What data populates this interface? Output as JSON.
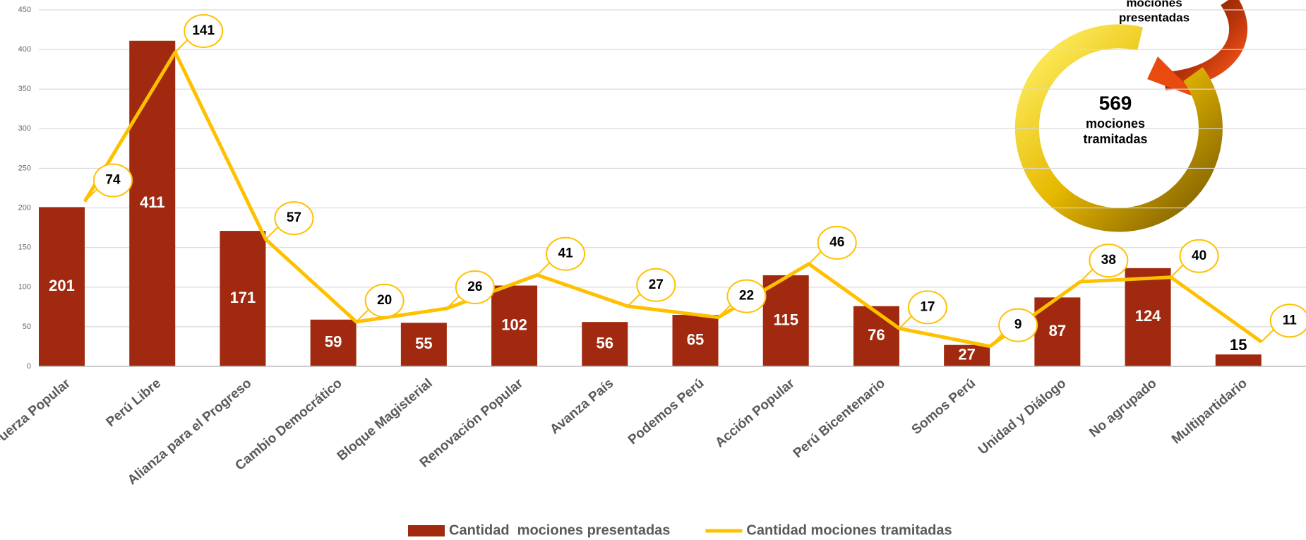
{
  "chart_data": {
    "type": "bar_line",
    "categories": [
      "Fuerza Popular",
      "Perú Libre",
      "Alianza para el Progreso",
      "Cambio Democrático",
      "Bloque Magisterial",
      "Renovación Popular",
      "Avanza País",
      "Podemos Perú",
      "Acción Popular",
      "Perú Bicentenario",
      "Somos Perú",
      "Unidad y Diálogo",
      "No agrupado",
      "Multipartidario"
    ],
    "series": [
      {
        "name": "Cantidad  mociones presentadas",
        "type": "bar",
        "color": "#a0290f",
        "values": [
          201,
          411,
          171,
          59,
          55,
          102,
          56,
          65,
          115,
          76,
          27,
          87,
          124,
          15
        ]
      },
      {
        "name": "Cantidad mociones tramitadas",
        "type": "line",
        "axis": "y2",
        "color": "#ffc000",
        "values": [
          74,
          141,
          57,
          20,
          26,
          41,
          27,
          22,
          46,
          17,
          9,
          38,
          40,
          11
        ]
      }
    ],
    "ylim": [
      0,
      450
    ],
    "yticks": [
      0,
      50,
      100,
      150,
      200,
      250,
      300,
      350,
      400,
      450
    ],
    "y2lim": [
      0,
      160
    ],
    "grid": true,
    "legend": "bottom",
    "arrow_labels": [
      "mociones",
      "presentadas"
    ],
    "ring_labels": [
      "569",
      "mociones",
      "tramitadas"
    ]
  }
}
